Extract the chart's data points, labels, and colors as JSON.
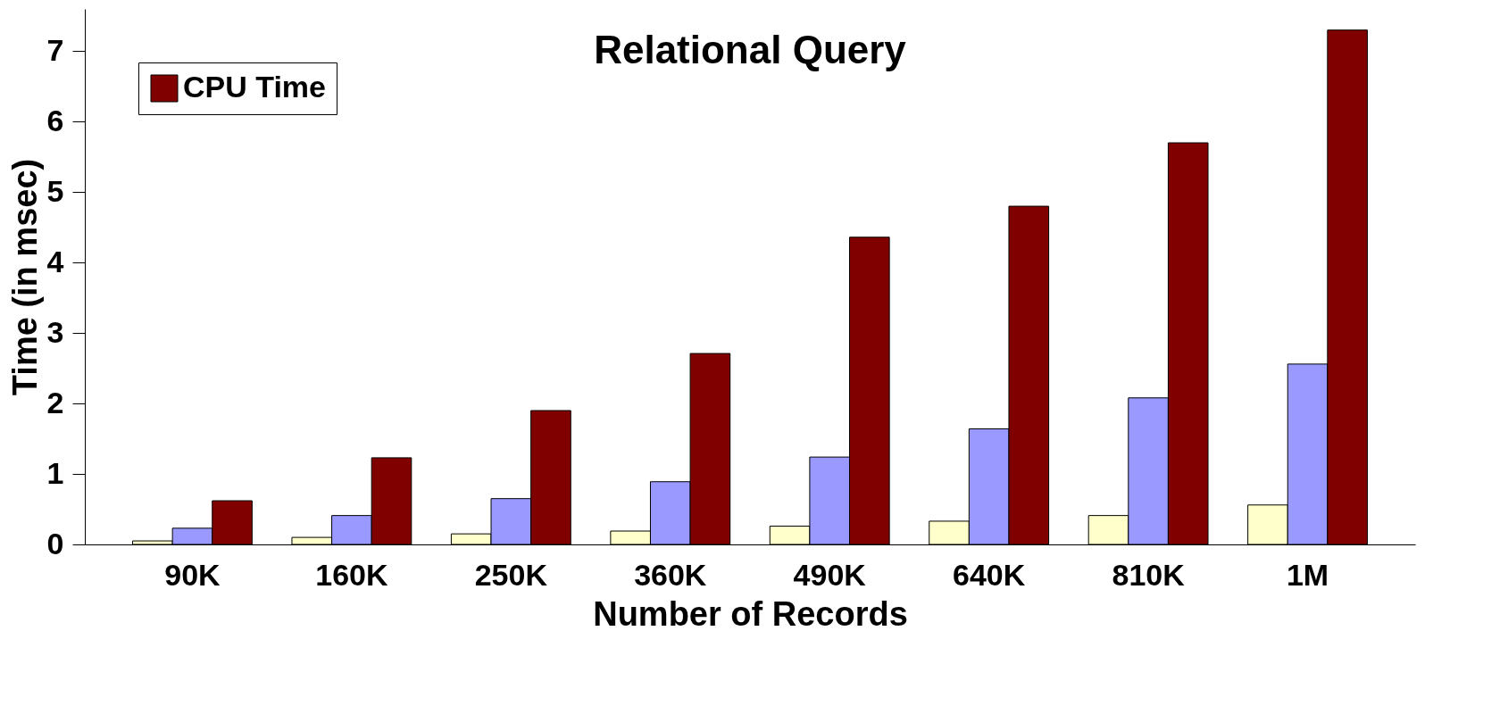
{
  "chart_data": {
    "type": "bar",
    "title": "Relational Query",
    "xlabel": "Number of Records",
    "ylabel": "Time (in msec)",
    "categories": [
      "90K",
      "160K",
      "250K",
      "360K",
      "490K",
      "640K",
      "810K",
      "1M"
    ],
    "series": [
      {
        "color": "#ffffcc",
        "values": [
          0.05,
          0.1,
          0.15,
          0.19,
          0.26,
          0.33,
          0.41,
          0.56
        ]
      },
      {
        "color": "#9999ff",
        "values": [
          0.23,
          0.41,
          0.65,
          0.89,
          1.24,
          1.64,
          2.08,
          2.56
        ]
      },
      {
        "name": "CPU Time",
        "color": "#800000",
        "values": [
          0.62,
          1.23,
          1.9,
          2.71,
          4.36,
          4.8,
          5.7,
          7.3
        ]
      }
    ],
    "ylim": [
      0,
      7.6
    ],
    "yticks": [
      0,
      1,
      2,
      3,
      4,
      5,
      6,
      7
    ],
    "grid": false,
    "legend": "top left"
  }
}
